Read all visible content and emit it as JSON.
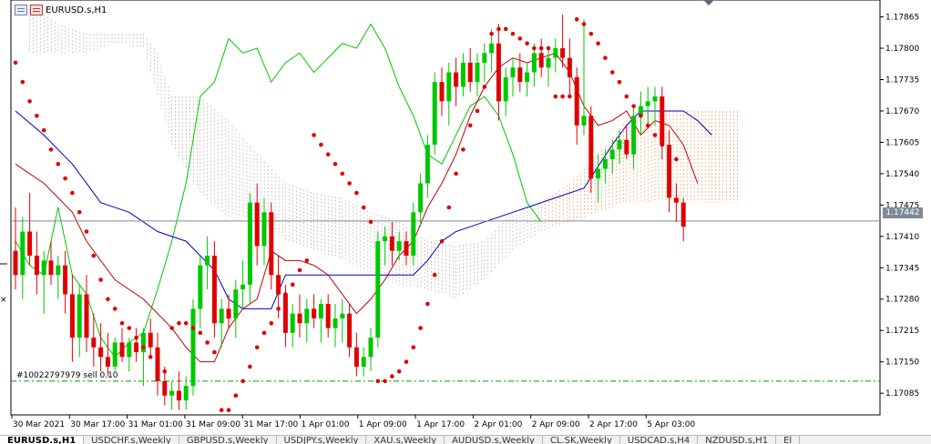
{
  "window": {
    "title": "EURUSD.s,H1",
    "order_label": "#10022797979 sell 0.10",
    "current_price": "1.17442"
  },
  "colors": {
    "bull": "#00c800",
    "bear": "#e00000",
    "sar": "#e00000",
    "kijun": "#0000c0",
    "tenkan": "#c00000",
    "chikou": "#00c800",
    "cloud_a": "#b8a0a0",
    "cloud_b": "#e8904a",
    "order_line": "#00a000",
    "price_line": "#7d8b97"
  },
  "chart_data": {
    "type": "candlestick",
    "symbol": "EURUSD.s",
    "timeframe": "H1",
    "ylim": [
      1.1704,
      1.179
    ],
    "y_ticks": [
      "1.17865",
      "1.17800",
      "1.17735",
      "1.17670",
      "1.17605",
      "1.17540",
      "1.17475",
      "1.17410",
      "1.17345",
      "1.17280",
      "1.17215",
      "1.17150",
      "1.17085"
    ],
    "x_ticks": [
      "30 Mar 2021",
      "30 Mar 17:00",
      "31 Mar 01:00",
      "31 Mar 09:00",
      "31 Mar 17:00",
      "1 Apr 01:00",
      "1 Apr 09:00",
      "1 Apr 17:00",
      "2 Apr 01:00",
      "2 Apr 09:00",
      "2 Apr 17:00",
      "5 Apr 03:00"
    ],
    "current_price": 1.17442,
    "order_price": 1.1711,
    "candles": [
      [
        1.1738,
        1.1747,
        1.173,
        1.1733
      ],
      [
        1.1733,
        1.1745,
        1.1728,
        1.1742
      ],
      [
        1.1742,
        1.175,
        1.1735,
        1.1737
      ],
      [
        1.1737,
        1.1742,
        1.1729,
        1.1733
      ],
      [
        1.1733,
        1.1738,
        1.1725,
        1.1736
      ],
      [
        1.1736,
        1.174,
        1.1731,
        1.1733
      ],
      [
        1.1733,
        1.1737,
        1.1728,
        1.1735
      ],
      [
        1.1735,
        1.1738,
        1.1725,
        1.1729
      ],
      [
        1.1729,
        1.1733,
        1.1715,
        1.172
      ],
      [
        1.172,
        1.1731,
        1.1716,
        1.1729
      ],
      [
        1.1729,
        1.1733,
        1.1717,
        1.172
      ],
      [
        1.172,
        1.1725,
        1.1714,
        1.1718
      ],
      [
        1.1718,
        1.1723,
        1.1713,
        1.1716
      ],
      [
        1.1716,
        1.1721,
        1.1712,
        1.1714
      ],
      [
        1.1714,
        1.172,
        1.1713,
        1.1719
      ],
      [
        1.1719,
        1.1722,
        1.1715,
        1.1716
      ],
      [
        1.1716,
        1.172,
        1.1713,
        1.1719
      ],
      [
        1.1719,
        1.1722,
        1.1715,
        1.1717
      ],
      [
        1.1717,
        1.1722,
        1.171,
        1.1721
      ],
      [
        1.1721,
        1.1724,
        1.1716,
        1.1718
      ],
      [
        1.1718,
        1.1721,
        1.1708,
        1.1711
      ],
      [
        1.1711,
        1.1714,
        1.1706,
        1.1708
      ],
      [
        1.1708,
        1.1711,
        1.1705,
        1.1709
      ],
      [
        1.1709,
        1.1713,
        1.1705,
        1.1707
      ],
      [
        1.1707,
        1.1712,
        1.1705,
        1.171
      ],
      [
        1.171,
        1.1728,
        1.1708,
        1.1726
      ],
      [
        1.1726,
        1.1737,
        1.1722,
        1.1735
      ],
      [
        1.1735,
        1.1741,
        1.173,
        1.1737
      ],
      [
        1.1737,
        1.174,
        1.172,
        1.1723
      ],
      [
        1.1723,
        1.1728,
        1.1718,
        1.1726
      ],
      [
        1.1726,
        1.1729,
        1.1722,
        1.1724
      ],
      [
        1.1724,
        1.1732,
        1.172,
        1.173
      ],
      [
        1.173,
        1.1736,
        1.1726,
        1.1731
      ],
      [
        1.1731,
        1.175,
        1.1727,
        1.1748
      ],
      [
        1.1748,
        1.1752,
        1.1735,
        1.1739
      ],
      [
        1.1739,
        1.1749,
        1.1735,
        1.1746
      ],
      [
        1.1746,
        1.1748,
        1.173,
        1.1733
      ],
      [
        1.1733,
        1.1737,
        1.1724,
        1.1729
      ],
      [
        1.1729,
        1.1731,
        1.1718,
        1.1721
      ],
      [
        1.1721,
        1.1727,
        1.1718,
        1.1725
      ],
      [
        1.1725,
        1.1729,
        1.172,
        1.1723
      ],
      [
        1.1723,
        1.1728,
        1.1719,
        1.1726
      ],
      [
        1.1726,
        1.1729,
        1.1722,
        1.1724
      ],
      [
        1.1724,
        1.1728,
        1.1719,
        1.1727
      ],
      [
        1.1727,
        1.1729,
        1.172,
        1.1722
      ],
      [
        1.1722,
        1.1727,
        1.1718,
        1.1724
      ],
      [
        1.1724,
        1.1728,
        1.1719,
        1.1725
      ],
      [
        1.1725,
        1.1727,
        1.1716,
        1.1718
      ],
      [
        1.1718,
        1.1721,
        1.1712,
        1.1714
      ],
      [
        1.1714,
        1.1718,
        1.1712,
        1.1716
      ],
      [
        1.1716,
        1.1722,
        1.1713,
        1.172
      ],
      [
        1.172,
        1.1742,
        1.1718,
        1.174
      ],
      [
        1.174,
        1.1743,
        1.1735,
        1.1741
      ],
      [
        1.1741,
        1.1744,
        1.1735,
        1.1738
      ],
      [
        1.1738,
        1.1742,
        1.1736,
        1.174
      ],
      [
        1.174,
        1.1742,
        1.1735,
        1.1737
      ],
      [
        1.1737,
        1.1748,
        1.1735,
        1.1746
      ],
      [
        1.1746,
        1.1754,
        1.1743,
        1.1752
      ],
      [
        1.1752,
        1.1762,
        1.1749,
        1.176
      ],
      [
        1.176,
        1.1775,
        1.1758,
        1.1773
      ],
      [
        1.1773,
        1.1776,
        1.1766,
        1.1769
      ],
      [
        1.1769,
        1.1777,
        1.1764,
        1.1775
      ],
      [
        1.1775,
        1.1778,
        1.1768,
        1.1772
      ],
      [
        1.1772,
        1.1779,
        1.177,
        1.1777
      ],
      [
        1.1777,
        1.178,
        1.1771,
        1.1773
      ],
      [
        1.1773,
        1.1779,
        1.177,
        1.1777
      ],
      [
        1.1777,
        1.1781,
        1.1773,
        1.1779
      ],
      [
        1.1779,
        1.1784,
        1.1775,
        1.1781
      ],
      [
        1.1781,
        1.1785,
        1.1765,
        1.1769
      ],
      [
        1.1769,
        1.1776,
        1.1766,
        1.1774
      ],
      [
        1.1774,
        1.1778,
        1.177,
        1.1776
      ],
      [
        1.1776,
        1.1779,
        1.1771,
        1.1773
      ],
      [
        1.1773,
        1.1777,
        1.177,
        1.1775
      ],
      [
        1.1775,
        1.1781,
        1.1772,
        1.1779
      ],
      [
        1.1779,
        1.1782,
        1.1774,
        1.1776
      ],
      [
        1.1776,
        1.178,
        1.1772,
        1.1778
      ],
      [
        1.1778,
        1.1782,
        1.1775,
        1.178
      ],
      [
        1.178,
        1.1787,
        1.1776,
        1.1778
      ],
      [
        1.1778,
        1.1782,
        1.177,
        1.1774
      ],
      [
        1.1774,
        1.1776,
        1.176,
        1.1764
      ],
      [
        1.1764,
        1.1786,
        1.1762,
        1.1766
      ],
      [
        1.1766,
        1.1768,
        1.175,
        1.1753
      ],
      [
        1.1753,
        1.1758,
        1.1748,
        1.1755
      ],
      [
        1.1755,
        1.1759,
        1.1752,
        1.1757
      ],
      [
        1.1757,
        1.1761,
        1.1754,
        1.1759
      ],
      [
        1.1759,
        1.1763,
        1.1756,
        1.1761
      ],
      [
        1.1761,
        1.1764,
        1.1757,
        1.1758
      ],
      [
        1.1758,
        1.1768,
        1.1755,
        1.1766
      ],
      [
        1.1766,
        1.1771,
        1.1762,
        1.1768
      ],
      [
        1.1768,
        1.1772,
        1.1764,
        1.1769
      ],
      [
        1.1769,
        1.1772,
        1.1764,
        1.177
      ],
      [
        1.177,
        1.1772,
        1.1757,
        1.176
      ],
      [
        1.176,
        1.1763,
        1.1746,
        1.1749
      ],
      [
        1.1749,
        1.1752,
        1.1744,
        1.1748
      ],
      [
        1.1748,
        1.1749,
        1.174,
        1.1743
      ]
    ],
    "sar": [
      [
        0,
        1.1777
      ],
      [
        1,
        1.1773
      ],
      [
        2,
        1.1769
      ],
      [
        3,
        1.1766
      ],
      [
        4,
        1.1763
      ],
      [
        5,
        1.1759
      ],
      [
        6,
        1.1756
      ],
      [
        7,
        1.1753
      ],
      [
        8,
        1.175
      ],
      [
        9,
        1.1746
      ],
      [
        10,
        1.1742
      ],
      [
        11,
        1.1737
      ],
      [
        12,
        1.1732
      ],
      [
        13,
        1.1728
      ],
      [
        14,
        1.1726
      ],
      [
        15,
        1.1723
      ],
      [
        16,
        1.1722
      ],
      [
        17,
        1.172
      ],
      [
        18,
        1.1718
      ],
      [
        19,
        1.1716
      ],
      [
        20,
        1.1714
      ],
      [
        21,
        1.1713
      ],
      [
        22,
        1.1722
      ],
      [
        23,
        1.1723
      ],
      [
        24,
        1.1723
      ],
      [
        25,
        1.1722
      ],
      [
        26,
        1.1721
      ],
      [
        27,
        1.1719
      ],
      [
        28,
        1.1717
      ],
      [
        29,
        1.1705
      ],
      [
        30,
        1.1705
      ],
      [
        31,
        1.1708
      ],
      [
        32,
        1.1711
      ],
      [
        33,
        1.1714
      ],
      [
        34,
        1.1718
      ],
      [
        35,
        1.1721
      ],
      [
        36,
        1.1723
      ],
      [
        37,
        1.1726
      ],
      [
        38,
        1.1729
      ],
      [
        39,
        1.1731
      ],
      [
        40,
        1.1734
      ],
      [
        41,
        1.1736
      ],
      [
        42,
        1.1762
      ],
      [
        43,
        1.176
      ],
      [
        44,
        1.1758
      ],
      [
        45,
        1.1756
      ],
      [
        46,
        1.1754
      ],
      [
        47,
        1.1752
      ],
      [
        48,
        1.175
      ],
      [
        49,
        1.1747
      ],
      [
        50,
        1.1744
      ],
      [
        51,
        1.1711
      ],
      [
        52,
        1.1711
      ],
      [
        53,
        1.1712
      ],
      [
        54,
        1.1713
      ],
      [
        55,
        1.1715
      ],
      [
        56,
        1.1718
      ],
      [
        57,
        1.1722
      ],
      [
        58,
        1.1727
      ],
      [
        59,
        1.1733
      ],
      [
        60,
        1.174
      ],
      [
        61,
        1.1747
      ],
      [
        62,
        1.1754
      ],
      [
        63,
        1.1759
      ],
      [
        64,
        1.1764
      ],
      [
        65,
        1.1767
      ],
      [
        66,
        1.1772
      ],
      [
        67,
        1.1783
      ],
      [
        68,
        1.1784
      ],
      [
        69,
        1.1784
      ],
      [
        70,
        1.1783
      ],
      [
        71,
        1.1782
      ],
      [
        72,
        1.1781
      ],
      [
        73,
        1.178
      ],
      [
        74,
        1.178
      ],
      [
        75,
        1.178
      ],
      [
        76,
        1.177
      ],
      [
        77,
        1.177
      ],
      [
        78,
        1.177
      ],
      [
        79,
        1.1786
      ],
      [
        80,
        1.1785
      ],
      [
        81,
        1.1783
      ],
      [
        82,
        1.1781
      ],
      [
        83,
        1.1778
      ],
      [
        84,
        1.1775
      ],
      [
        85,
        1.1773
      ],
      [
        86,
        1.177
      ],
      [
        87,
        1.1768
      ],
      [
        88,
        1.1766
      ],
      [
        89,
        1.1764
      ],
      [
        90,
        1.1762
      ],
      [
        91,
        1.176
      ],
      [
        92,
        1.1759
      ],
      [
        93,
        1.1757
      ]
    ],
    "kijun": [
      [
        0,
        1.1767
      ],
      [
        4,
        1.1762
      ],
      [
        8,
        1.1756
      ],
      [
        12,
        1.1748
      ],
      [
        16,
        1.1746
      ],
      [
        20,
        1.1742
      ],
      [
        24,
        1.174
      ],
      [
        28,
        1.1734
      ],
      [
        30,
        1.1728
      ],
      [
        32,
        1.1726
      ],
      [
        36,
        1.1726
      ],
      [
        38,
        1.1733
      ],
      [
        44,
        1.1733
      ],
      [
        52,
        1.1733
      ],
      [
        56,
        1.1733
      ],
      [
        58,
        1.1736
      ],
      [
        60,
        1.174
      ],
      [
        62,
        1.1742
      ],
      [
        64,
        1.1743
      ],
      [
        70,
        1.1746
      ],
      [
        76,
        1.1749
      ],
      [
        80,
        1.1751
      ],
      [
        84,
        1.176
      ],
      [
        86,
        1.1764
      ],
      [
        88,
        1.1767
      ],
      [
        94,
        1.1767
      ],
      [
        96,
        1.1765
      ],
      [
        98,
        1.1762
      ]
    ],
    "tenkan": [
      [
        0,
        1.1756
      ],
      [
        4,
        1.1752
      ],
      [
        8,
        1.1746
      ],
      [
        10,
        1.174
      ],
      [
        14,
        1.1732
      ],
      [
        18,
        1.1728
      ],
      [
        22,
        1.1722
      ],
      [
        24,
        1.1718
      ],
      [
        26,
        1.1715
      ],
      [
        28,
        1.1715
      ],
      [
        30,
        1.1722
      ],
      [
        32,
        1.1726
      ],
      [
        34,
        1.1728
      ],
      [
        36,
        1.1738
      ],
      [
        38,
        1.1736
      ],
      [
        40,
        1.1736
      ],
      [
        42,
        1.1735
      ],
      [
        44,
        1.1733
      ],
      [
        46,
        1.1729
      ],
      [
        48,
        1.1725
      ],
      [
        50,
        1.1728
      ],
      [
        52,
        1.1732
      ],
      [
        54,
        1.1737
      ],
      [
        56,
        1.174
      ],
      [
        58,
        1.1747
      ],
      [
        60,
        1.1752
      ],
      [
        62,
        1.1758
      ],
      [
        64,
        1.1766
      ],
      [
        66,
        1.1772
      ],
      [
        68,
        1.1776
      ],
      [
        70,
        1.1778
      ],
      [
        72,
        1.1777
      ],
      [
        74,
        1.1778
      ],
      [
        76,
        1.1779
      ],
      [
        78,
        1.1775
      ],
      [
        80,
        1.1768
      ],
      [
        82,
        1.1764
      ],
      [
        84,
        1.1765
      ],
      [
        86,
        1.1767
      ],
      [
        88,
        1.1762
      ],
      [
        90,
        1.1765
      ],
      [
        92,
        1.1764
      ],
      [
        94,
        1.176
      ],
      [
        96,
        1.1752
      ]
    ],
    "chikou": [
      [
        0,
        1.174
      ],
      [
        2,
        1.1735
      ],
      [
        4,
        1.1733
      ],
      [
        6,
        1.1747
      ],
      [
        8,
        1.1733
      ],
      [
        10,
        1.1729
      ],
      [
        12,
        1.172
      ],
      [
        14,
        1.1716
      ],
      [
        16,
        1.1719
      ],
      [
        18,
        1.1721
      ],
      [
        20,
        1.173
      ],
      [
        22,
        1.174
      ],
      [
        24,
        1.1752
      ],
      [
        26,
        1.177
      ],
      [
        28,
        1.1773
      ],
      [
        30,
        1.1782
      ],
      [
        32,
        1.1779
      ],
      [
        34,
        1.178
      ],
      [
        36,
        1.1773
      ],
      [
        38,
        1.1777
      ],
      [
        40,
        1.1779
      ],
      [
        42,
        1.1775
      ],
      [
        44,
        1.1778
      ],
      [
        46,
        1.1781
      ],
      [
        48,
        1.178
      ],
      [
        50,
        1.1785
      ],
      [
        52,
        1.178
      ],
      [
        54,
        1.1772
      ],
      [
        56,
        1.1766
      ],
      [
        58,
        1.1758
      ],
      [
        60,
        1.1756
      ],
      [
        62,
        1.1762
      ],
      [
        64,
        1.1768
      ],
      [
        66,
        1.177
      ],
      [
        68,
        1.1766
      ],
      [
        70,
        1.1758
      ],
      [
        72,
        1.1748
      ],
      [
        74,
        1.1744
      ]
    ],
    "cloud": [
      [
        2,
        1.1779,
        1.1789
      ],
      [
        6,
        1.1779,
        1.1785
      ],
      [
        10,
        1.1779,
        1.1783
      ],
      [
        14,
        1.1781,
        1.1783
      ],
      [
        18,
        1.178,
        1.1783
      ],
      [
        20,
        1.177,
        1.1779
      ],
      [
        22,
        1.176,
        1.177
      ],
      [
        26,
        1.175,
        1.177
      ],
      [
        30,
        1.1745,
        1.1765
      ],
      [
        34,
        1.1745,
        1.1758
      ],
      [
        38,
        1.174,
        1.1752
      ],
      [
        42,
        1.1738,
        1.175
      ],
      [
        46,
        1.1736,
        1.1749
      ],
      [
        50,
        1.1733,
        1.1746
      ],
      [
        54,
        1.1731,
        1.1744
      ],
      [
        58,
        1.173,
        1.174
      ],
      [
        62,
        1.1728,
        1.1739
      ],
      [
        66,
        1.1732,
        1.174
      ],
      [
        70,
        1.1738,
        1.1746
      ],
      [
        74,
        1.1742,
        1.1748
      ],
      [
        78,
        1.1744,
        1.1752
      ],
      [
        82,
        1.1746,
        1.1758
      ],
      [
        86,
        1.1748,
        1.1765
      ],
      [
        90,
        1.1748,
        1.1767
      ],
      [
        94,
        1.1748,
        1.1767
      ],
      [
        98,
        1.1748,
        1.1767
      ]
    ]
  },
  "tabs": [
    {
      "label": "EURUSD.s,H1",
      "active": true
    },
    {
      "label": "USDCHF.s,Weekly",
      "active": false
    },
    {
      "label": "GBPUSD.s,Weekly",
      "active": false
    },
    {
      "label": "USDJPY.s,Weekly",
      "active": false
    },
    {
      "label": "XAU.s,Weekly",
      "active": false
    },
    {
      "label": "AUDUSD.s,Weekly",
      "active": false
    },
    {
      "label": "CL.SK,Weekly",
      "active": false
    },
    {
      "label": "USDCAD.s,H4",
      "active": false
    },
    {
      "label": "NZDUSD.s,H1",
      "active": false
    },
    {
      "label": "El",
      "active": false
    }
  ]
}
